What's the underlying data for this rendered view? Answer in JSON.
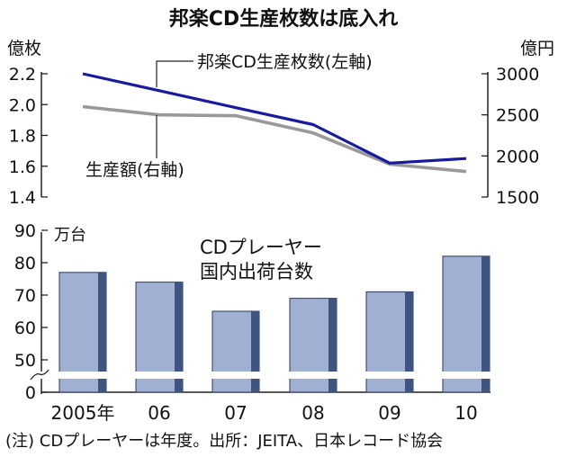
{
  "title": "邦楽CD生産枚数は底入れ",
  "footnote": "(注) CDプレーヤーは年度。出所：JEITA、日本レコード協会",
  "categories": [
    "2005年",
    "06",
    "07",
    "08",
    "09",
    "10"
  ],
  "chart_data": [
    {
      "type": "line",
      "x": [
        "2005年",
        "06",
        "07",
        "08",
        "09",
        "10"
      ],
      "series": [
        {
          "name": "邦楽CD生産枚数(左軸)",
          "axis": "left",
          "color": "#1a1aa0",
          "values": [
            2.2,
            2.09,
            1.98,
            1.87,
            1.62,
            1.65
          ]
        },
        {
          "name": "生産額(右軸)",
          "axis": "right",
          "color": "#999999",
          "values": [
            2600,
            2500,
            2490,
            2280,
            1900,
            1810
          ]
        }
      ],
      "left_axis": {
        "unit": "億枚",
        "ticks": [
          "2.2",
          "2.0",
          "1.8",
          "1.6",
          "1.4"
        ],
        "ylim": [
          1.4,
          2.2
        ]
      },
      "right_axis": {
        "unit": "億円",
        "ticks": [
          "3000",
          "2500",
          "2000",
          "1500"
        ],
        "ylim": [
          1500,
          3000
        ]
      }
    },
    {
      "type": "bar",
      "title": "CDプレーヤー\n国内出荷台数",
      "categories": [
        "2005年",
        "06",
        "07",
        "08",
        "09",
        "10"
      ],
      "values": [
        77,
        74,
        65,
        69,
        71,
        82
      ],
      "color": "#9fb0d2",
      "axis": {
        "unit": "万台",
        "ticks": [
          "90",
          "80",
          "70",
          "60",
          "50",
          "0"
        ],
        "ylim": [
          40,
          90
        ],
        "broken_axis": true
      }
    }
  ]
}
